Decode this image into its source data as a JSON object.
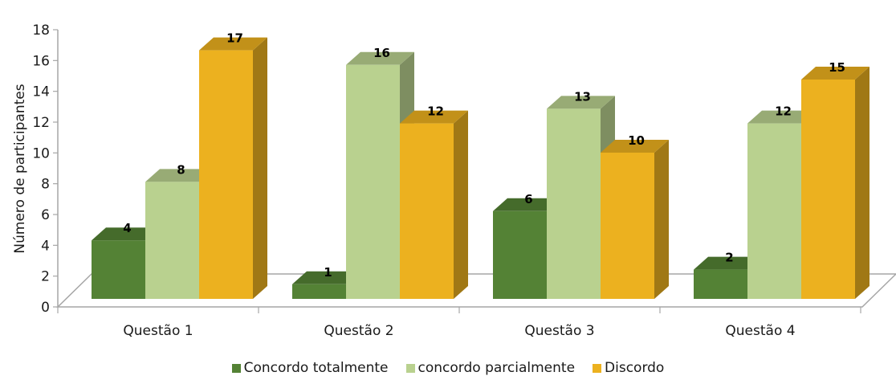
{
  "chart_data": {
    "type": "bar",
    "title": "",
    "xlabel": "",
    "ylabel": "Número de participantes",
    "ylim": [
      0,
      18
    ],
    "yticks": [
      "0",
      "2",
      "4",
      "6",
      "8",
      "10",
      "12",
      "14",
      "16",
      "18"
    ],
    "grid": false,
    "legend_position": "bottom",
    "categories": [
      "Questão 1",
      "Questão 2",
      "Questão 3",
      "Questão 4"
    ],
    "series": [
      {
        "name": "Concordo totalmente",
        "values": [
          4,
          1,
          6,
          2
        ],
        "color": "#548235"
      },
      {
        "name": "concordo parcialmente",
        "values": [
          8,
          16,
          13,
          12
        ],
        "color": "#b9d18f"
      },
      {
        "name": "Discordo",
        "values": [
          17,
          12,
          10,
          15
        ],
        "color": "#ecb11f"
      }
    ]
  }
}
